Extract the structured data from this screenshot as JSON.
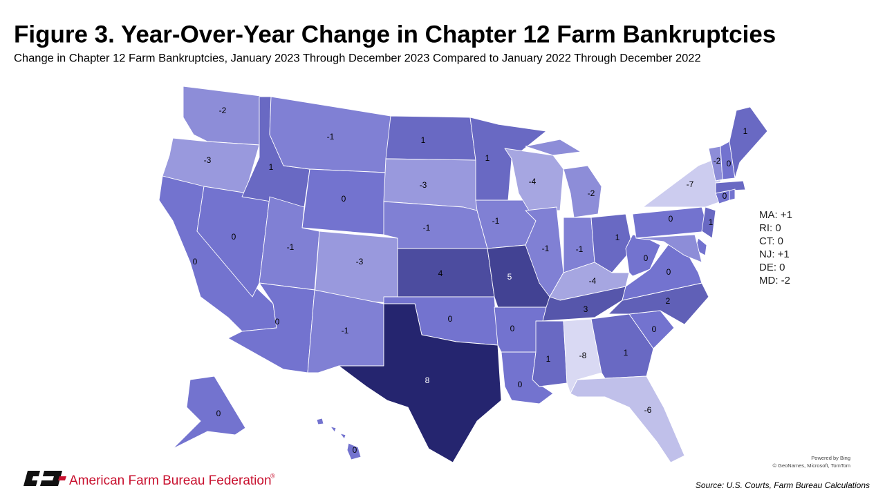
{
  "title": "Figure 3. Year-Over-Year Change in Chapter 12 Farm Bankruptcies",
  "subtitle": "Change in Chapter 12 Farm Bankruptcies, January 2023 Through December 2023 Compared to January 2022 Through December 2022",
  "map": {
    "values": [
      -2,
      -3,
      0,
      0,
      1,
      -1,
      0,
      -1,
      -3,
      0,
      -1,
      1,
      -3,
      -1,
      4,
      0,
      8,
      1,
      -1,
      5,
      0,
      0,
      -4,
      -1,
      -2,
      -1,
      1,
      -4,
      3,
      1,
      -8,
      1,
      -6,
      0,
      2,
      0,
      0,
      0,
      -7,
      1,
      0,
      -2,
      0,
      1,
      0,
      0
    ],
    "color_low": "#d9d9f3",
    "color_mid": "#7373cf",
    "color_high": "#25256f",
    "side_notes": [
      {
        "value": 1,
        "label": "MA: +1"
      },
      {
        "value": 0,
        "label": "RI: 0"
      },
      {
        "value": 0,
        "label": "CT: 0"
      },
      {
        "value": 1,
        "label": "NJ: +1"
      },
      {
        "value": 0,
        "label": "DE: 0"
      },
      {
        "value": -2,
        "label": "MD: -2"
      }
    ],
    "attribution": [
      "Powered by Bing",
      "© GeoNames, Microsoft, TomTom"
    ]
  },
  "footer": {
    "organization": "American Farm Bureau Federation",
    "trademark": "®",
    "source": "Source: U.S. Courts, Farm Bureau Calculations"
  }
}
